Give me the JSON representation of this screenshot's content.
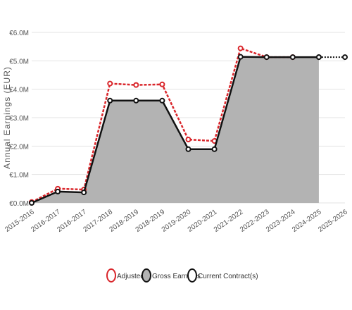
{
  "chart_data": {
    "type": "line",
    "y_label": "Annual Earnings (EUR)",
    "categories": [
      "2015-2016",
      "2016-2017",
      "2016-2017",
      "2017-2018",
      "2018-2019",
      "2018-2019",
      "2019-2020",
      "2020-2021",
      "2021-2022",
      "2022-2023",
      "2023-2024",
      "2024-2025",
      "2025-2026"
    ],
    "series": [
      {
        "name": "Adjusted",
        "color": "#d9262b",
        "values": [
          0.03,
          0.5,
          0.47,
          4.2,
          4.15,
          4.17,
          2.23,
          2.18,
          5.44,
          5.13,
          5.13,
          null,
          null
        ]
      },
      {
        "name": "Gross Earnings",
        "color": "#111111",
        "fill": "#b3b3b3",
        "values": [
          0.0,
          0.4,
          0.37,
          3.6,
          3.6,
          3.6,
          1.89,
          1.89,
          5.14,
          5.13,
          5.13,
          5.13,
          null
        ]
      },
      {
        "name": "Current Contract(s)",
        "color": "#111111",
        "values": [
          null,
          null,
          null,
          null,
          null,
          null,
          null,
          null,
          null,
          null,
          null,
          5.13,
          5.13
        ]
      }
    ],
    "ylim": [
      0,
      6
    ],
    "yticks": [
      {
        "value": 0,
        "label": "€0.0M"
      },
      {
        "value": 1,
        "label": "€1.0M"
      },
      {
        "value": 2,
        "label": "€2.0M"
      },
      {
        "value": 3,
        "label": "€3.0M"
      },
      {
        "value": 4,
        "label": "€4.0M"
      },
      {
        "value": 5,
        "label": "€5.0M"
      },
      {
        "value": 6,
        "label": "€6.0M"
      }
    ],
    "grid": true
  }
}
